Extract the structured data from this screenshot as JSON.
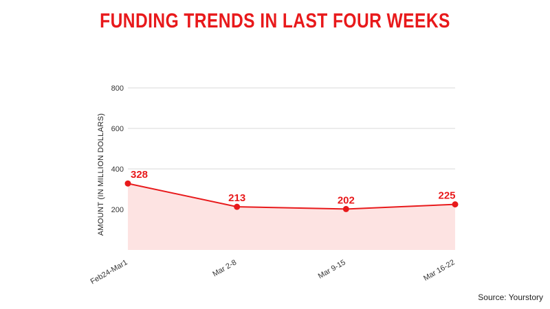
{
  "colors": {
    "accent": "#e8191b",
    "area_fill": "#fde3e2",
    "grid": "#d9d9d9"
  },
  "title": "FUNDING TRENDS IN LAST FOUR WEEKS",
  "source": "Source: Yourstory",
  "chart_data": {
    "type": "area",
    "title": "FUNDING TRENDS IN LAST FOUR WEEKS",
    "xlabel": "",
    "ylabel": "AMOUNT (IN MILLION DOLLARS)",
    "categories": [
      "Feb24-Mar1",
      "Mar 2-8",
      "Mar 9-15",
      "Mar 16-22"
    ],
    "values": [
      328,
      213,
      202,
      225
    ],
    "data_labels": [
      "328",
      "213",
      "202",
      "225"
    ],
    "yticks": [
      200,
      400,
      600,
      800
    ],
    "ylim": [
      0,
      800
    ],
    "grid": true,
    "legend": "none"
  }
}
